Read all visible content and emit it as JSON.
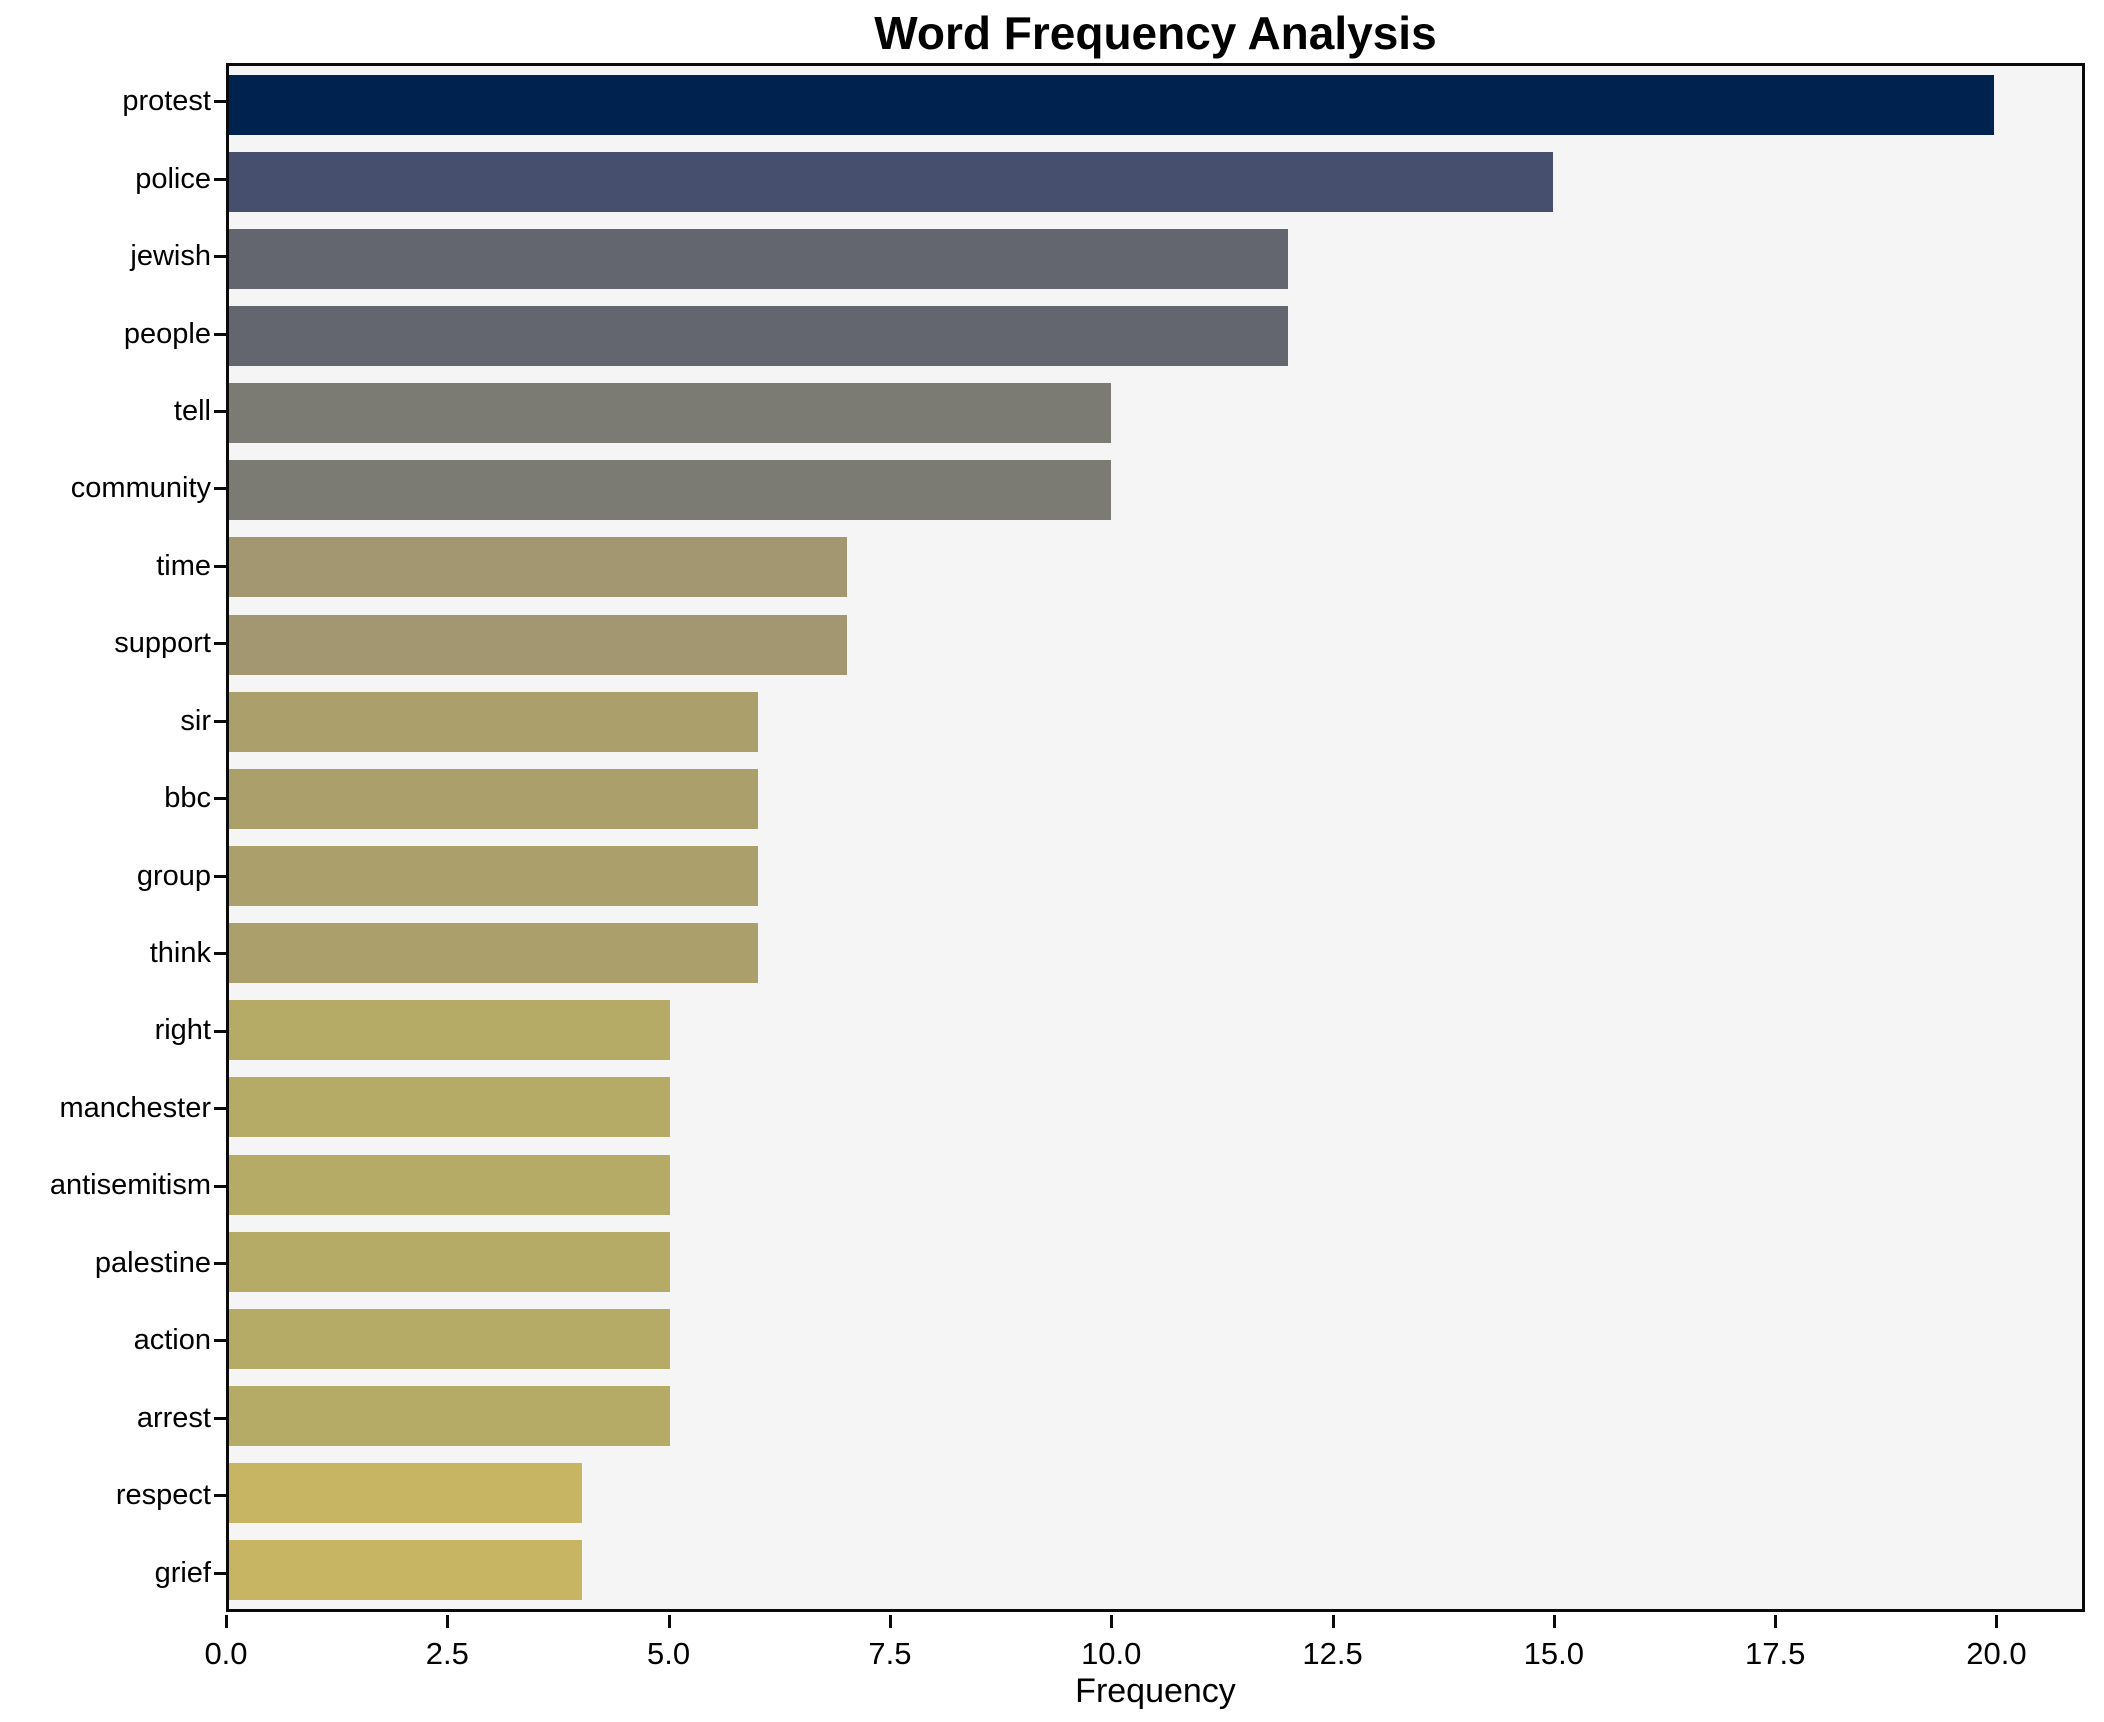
{
  "chart_data": {
    "type": "bar",
    "orientation": "horizontal",
    "title": "Word Frequency Analysis",
    "xlabel": "Frequency",
    "ylabel": "",
    "categories": [
      "protest",
      "police",
      "jewish",
      "people",
      "tell",
      "community",
      "time",
      "support",
      "sir",
      "bbc",
      "group",
      "think",
      "right",
      "manchester",
      "antisemitism",
      "palestine",
      "action",
      "arrest",
      "respect",
      "grief"
    ],
    "values": [
      20,
      15,
      12,
      12,
      10,
      10,
      7,
      7,
      6,
      6,
      6,
      6,
      5,
      5,
      5,
      5,
      5,
      5,
      4,
      4
    ],
    "bar_colors": [
      "#00224e",
      "#474f6f",
      "#63666e",
      "#63666e",
      "#7b7a73",
      "#7b7a73",
      "#a29770",
      "#a29770",
      "#ab9f6b",
      "#ab9f6b",
      "#ab9f6b",
      "#ab9f6b",
      "#b6aa67",
      "#b6aa67",
      "#b6aa67",
      "#b6aa67",
      "#b6aa67",
      "#b6aa67",
      "#c7b563",
      "#c7b563"
    ],
    "xlim": [
      0,
      21
    ],
    "x_tick_values": [
      0,
      2.5,
      5,
      7.5,
      10,
      12.5,
      15,
      17.5,
      20
    ],
    "x_tick_labels": [
      "0.0",
      "2.5",
      "5.0",
      "7.5",
      "10.0",
      "12.5",
      "15.0",
      "17.5",
      "20.0"
    ],
    "grid": false,
    "legend_position": "none",
    "plot_background": "#f5f5f6",
    "figure_background": "#ffffff",
    "spine_color": "#0a0a0a"
  }
}
